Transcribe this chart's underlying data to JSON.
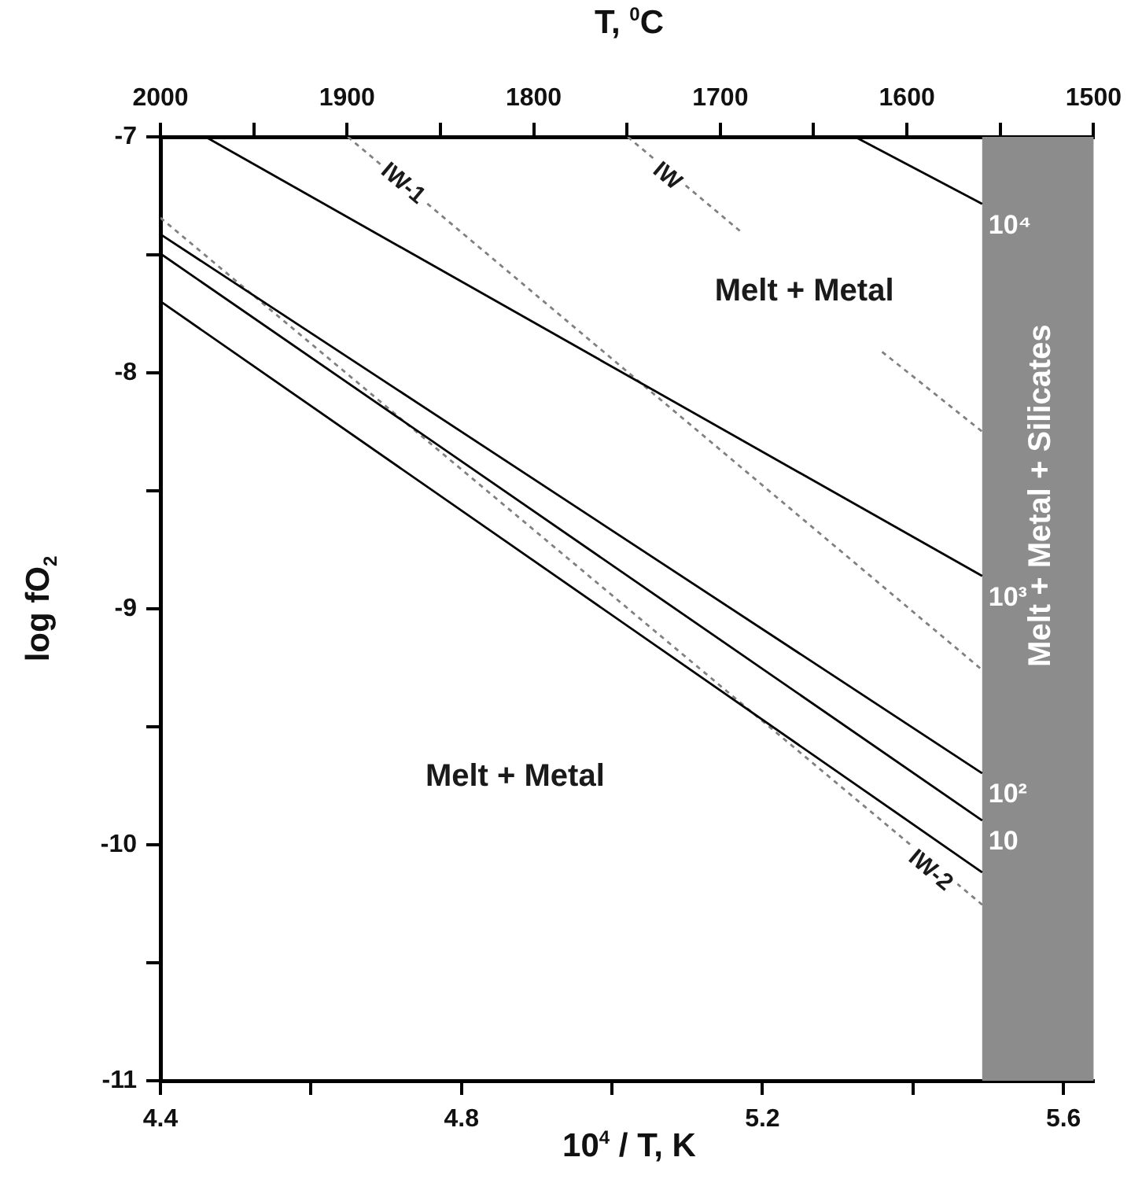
{
  "chart_data": {
    "type": "line",
    "xlabel": "10$^{4}$ / T, K",
    "ylabel": "log fO$_{2}$",
    "x2label": "T, $^{0}$C",
    "xlim": [
      4.4,
      5.64
    ],
    "xticks": [
      4.4,
      {
        "value": 4.6,
        "label": null
      },
      4.8,
      {
        "value": 5.0,
        "label": null
      },
      5.2,
      {
        "value": 5.4,
        "label": null
      },
      5.6
    ],
    "x2lim": [
      2000,
      1500
    ],
    "x2ticks": [
      2000,
      {
        "value": 1950,
        "label": null
      },
      1900,
      {
        "value": 1850,
        "label": null
      },
      1800,
      {
        "value": 1750,
        "label": null
      },
      1700,
      {
        "value": 1650,
        "label": null
      },
      1600,
      {
        "value": 1550,
        "label": null
      },
      1500
    ],
    "ylim": [
      -11,
      -7
    ],
    "yticks": [
      -11,
      {
        "value": -10.5,
        "label": null
      },
      -10,
      {
        "value": -9.5,
        "label": null
      },
      -9,
      {
        "value": -8.5,
        "label": null
      },
      -8,
      {
        "value": -7.5,
        "label": null
      },
      -7
    ],
    "series": [
      {
        "name": "10⁴",
        "color": "#000000",
        "x": [
          5.323,
          5.492
        ],
        "values": [
          -7,
          -7.284
        ]
      },
      {
        "name": "10³",
        "color": "#000000",
        "x": [
          4.46,
          5.492
        ],
        "values": [
          -7,
          -8.861
        ]
      },
      {
        "name": "10²",
        "color": "#000000",
        "x": [
          4.4,
          5.492
        ],
        "values": [
          -7.413,
          -9.697
        ]
      },
      {
        "name": "10",
        "color": "#000000",
        "x": [
          4.4,
          5.492
        ],
        "values": [
          -7.495,
          -9.897
        ]
      },
      {
        "color": "#000000",
        "x": [
          4.4,
          5.492
        ],
        "values": [
          -7.697,
          -10.117
        ]
      },
      {
        "color": "#808080",
        "line_style": "dotted",
        "x": [
          4.649,
          5.492
        ],
        "values": [
          -7,
          -9.259
        ]
      },
      {
        "color": "#808080",
        "line_style": "dotted",
        "x": [
          5.021,
          5.172,
          5.26,
          5.359,
          5.492
        ],
        "values": [
          -7,
          -7.404,
          null,
          -7.911,
          -8.249
        ]
      },
      {
        "color": "#808080",
        "line_style": "dotted",
        "x": [
          4.4,
          5.492
        ],
        "values": [
          -7.343,
          -10.254
        ]
      }
    ],
    "bands": [
      {
        "axis": "x",
        "from": 5.492,
        "to": 5.64,
        "label": "Melt + Metal + Silicates",
        "color": "#8c8c8c"
      }
    ],
    "annotations": [
      {
        "text": "IW-1",
        "x": 4.722,
        "y": -7.199
      },
      {
        "text": "IW",
        "x": 5.073,
        "y": -7.168
      },
      {
        "text": "IW-2",
        "x": 5.423,
        "y": -10.11
      },
      "Melt + Metal",
      "Melt + Metal"
    ],
    "legend": false,
    "grid": false
  }
}
